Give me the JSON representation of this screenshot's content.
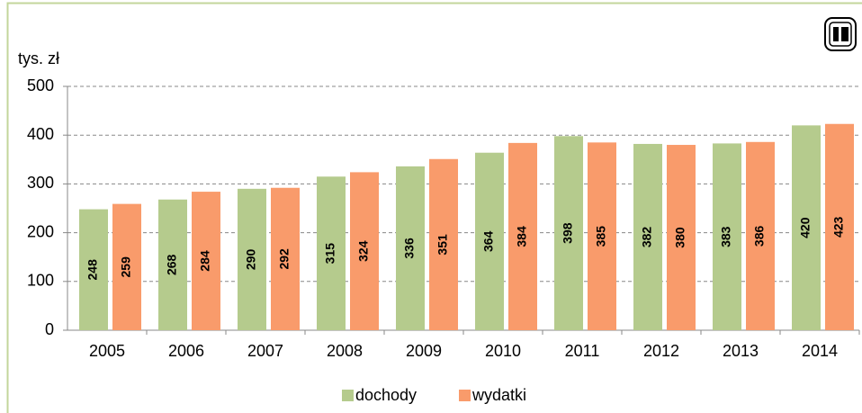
{
  "chart_data": {
    "type": "bar",
    "y_label": "tys. zł",
    "categories": [
      "2005",
      "2006",
      "2007",
      "2008",
      "2009",
      "2010",
      "2011",
      "2012",
      "2013",
      "2014"
    ],
    "series": [
      {
        "name": "dochody",
        "color": "#b5cb8d",
        "values": [
          248,
          268,
          290,
          315,
          336,
          364,
          398,
          382,
          383,
          420
        ]
      },
      {
        "name": "wydatki",
        "color": "#f99b6b",
        "values": [
          259,
          284,
          292,
          324,
          351,
          384,
          385,
          380,
          386,
          423
        ]
      }
    ],
    "ylim": [
      0,
      500
    ],
    "yticks": [
      0,
      100,
      200,
      300,
      400,
      500
    ],
    "grid": true,
    "legend": "bottom"
  }
}
